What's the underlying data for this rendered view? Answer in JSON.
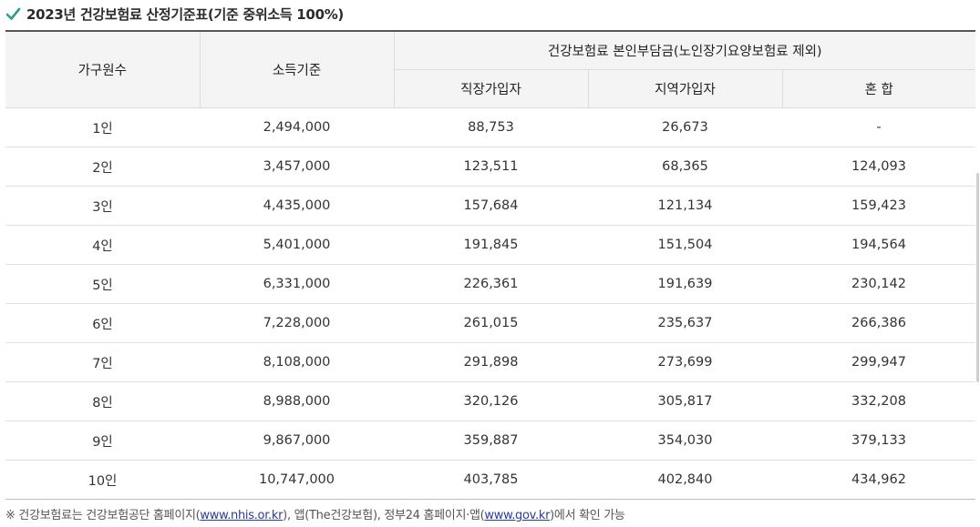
{
  "title": "2023년 건강보험료 산정기준표(기준 중위소득 100%)",
  "table": {
    "headers": {
      "household": "가구원수",
      "income": "소득기준",
      "premium_group": "건강보험료 본인부담금(노인장기요양보험료 제외)",
      "workplace": "직장가입자",
      "regional": "지역가입자",
      "mixed": "혼 합"
    },
    "rows": [
      {
        "household": "1인",
        "income": "2,494,000",
        "workplace": "88,753",
        "regional": "26,673",
        "mixed": "-"
      },
      {
        "household": "2인",
        "income": "3,457,000",
        "workplace": "123,511",
        "regional": "68,365",
        "mixed": "124,093"
      },
      {
        "household": "3인",
        "income": "4,435,000",
        "workplace": "157,684",
        "regional": "121,134",
        "mixed": "159,423"
      },
      {
        "household": "4인",
        "income": "5,401,000",
        "workplace": "191,845",
        "regional": "151,504",
        "mixed": "194,564"
      },
      {
        "household": "5인",
        "income": "6,331,000",
        "workplace": "226,361",
        "regional": "191,639",
        "mixed": "230,142"
      },
      {
        "household": "6인",
        "income": "7,228,000",
        "workplace": "261,015",
        "regional": "235,637",
        "mixed": "266,386"
      },
      {
        "household": "7인",
        "income": "8,108,000",
        "workplace": "291,898",
        "regional": "273,699",
        "mixed": "299,947"
      },
      {
        "household": "8인",
        "income": "8,988,000",
        "workplace": "320,126",
        "regional": "305,817",
        "mixed": "332,208"
      },
      {
        "household": "9인",
        "income": "9,867,000",
        "workplace": "359,887",
        "regional": "354,030",
        "mixed": "379,133"
      },
      {
        "household": "10인",
        "income": "10,747,000",
        "workplace": "403,785",
        "regional": "402,840",
        "mixed": "434,962"
      }
    ]
  },
  "note": {
    "prefix": "※ 건강보험료는 건강보험공단 홈페이지(",
    "link1": "www.nhis.or.kr",
    "middle": "), 앱(The건강보험), 정부24 홈페이지·앱(",
    "link2": "www.gov.kr",
    "suffix": ")에서 확인 가능"
  },
  "colors": {
    "check": "#2a9d8f",
    "header_bg": "#f4f4f4",
    "link": "#2a3a9a"
  },
  "icons": {
    "title_check": "check-icon"
  }
}
